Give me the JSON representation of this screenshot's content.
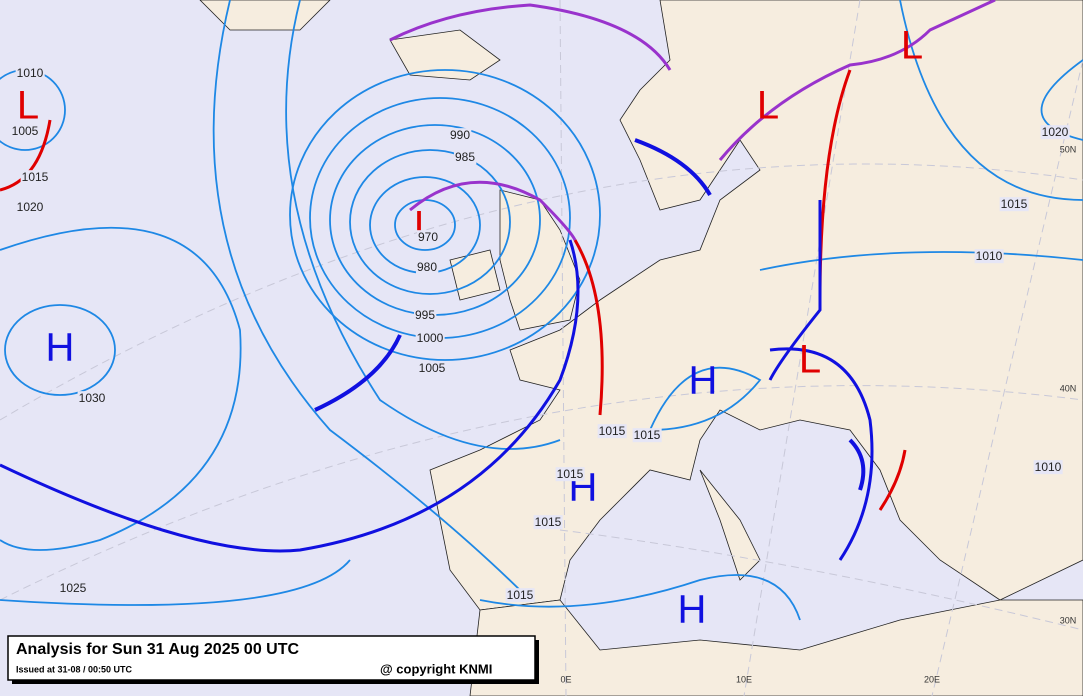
{
  "caption": {
    "title": "Analysis for Sun 31 Aug 2025 00 UTC",
    "issued": "Issued at 31-08 / 00:50 UTC",
    "copyright": "@ copyright KNMI"
  },
  "pressure_centers": [
    {
      "label": "L",
      "color": "#e00000"
    },
    {
      "label": "L",
      "color": "#e00000"
    },
    {
      "label": "L",
      "color": "#e00000"
    },
    {
      "label": "L",
      "color": "#e00000"
    },
    {
      "label": "L",
      "color": "#e00000"
    },
    {
      "label": "H",
      "color": "#1010e0"
    },
    {
      "label": "H",
      "color": "#1010e0"
    },
    {
      "label": "H",
      "color": "#1010e0"
    },
    {
      "label": "H",
      "color": "#1010e0"
    }
  ],
  "isobar_labels": [
    "1010",
    "1005",
    "1015",
    "1020",
    "990",
    "985",
    "970",
    "980",
    "995",
    "1000",
    "1005",
    "1030",
    "1025",
    "1015",
    "1015",
    "1015",
    "1015",
    "1015",
    "1010",
    "1015",
    "1020",
    "1010"
  ],
  "graticule_labels": [
    "50N",
    "40N",
    "30N",
    "0E",
    "10E",
    "20E"
  ]
}
